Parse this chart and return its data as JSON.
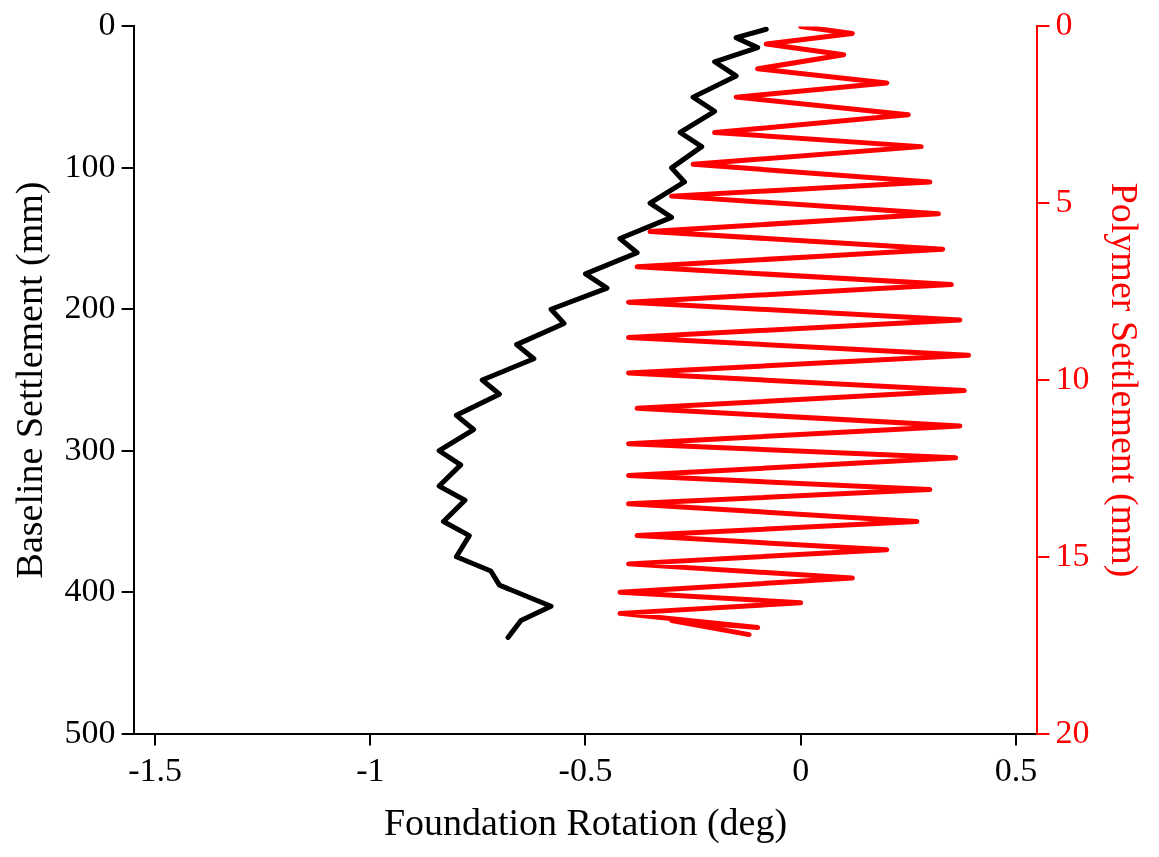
{
  "chart_data": {
    "type": "line",
    "xlabel": "Foundation Rotation (deg)",
    "ylabel": "Baseline Settlement (mm)",
    "y2label": "Polymer Settlement (mm)",
    "xlim": [
      -1.55,
      0.55
    ],
    "xticks": [
      -1.5,
      -1,
      -0.5,
      0,
      0.5
    ],
    "ylim": [
      500,
      0
    ],
    "yticks": [
      0,
      100,
      200,
      300,
      400,
      500
    ],
    "y2lim": [
      20,
      0
    ],
    "y2ticks": [
      0,
      5,
      10,
      15,
      20
    ],
    "grid": false,
    "legend": false,
    "marker": "none",
    "line_style": "solid",
    "series": [
      {
        "color": "#000000",
        "x": [
          -0.08,
          -0.15,
          -0.1,
          -0.2,
          -0.15,
          -0.25,
          -0.2,
          -0.28,
          -0.23,
          -0.3,
          -0.27,
          -0.35,
          -0.3,
          -0.42,
          -0.38,
          -0.5,
          -0.45,
          -0.58,
          -0.55,
          -0.66,
          -0.62,
          -0.74,
          -0.7,
          -0.8,
          -0.76,
          -0.84,
          -0.79,
          -0.84,
          -0.78,
          -0.83,
          -0.77,
          -0.8,
          -0.72,
          -0.7,
          -0.62,
          -0.58,
          -0.65,
          -0.68
        ],
        "values": [
          2,
          8,
          15,
          25,
          35,
          50,
          60,
          75,
          85,
          100,
          110,
          125,
          135,
          150,
          160,
          175,
          185,
          200,
          210,
          225,
          235,
          250,
          260,
          275,
          285,
          300,
          310,
          325,
          335,
          350,
          360,
          375,
          385,
          395,
          405,
          410,
          420,
          432
        ]
      },
      {
        "color": "#ff0000",
        "axis": "y2",
        "x": [
          0.0,
          0.12,
          -0.08,
          0.1,
          -0.1,
          0.2,
          -0.15,
          0.25,
          -0.2,
          0.28,
          -0.25,
          0.3,
          -0.3,
          0.32,
          -0.35,
          0.33,
          -0.38,
          0.35,
          -0.4,
          0.37,
          -0.4,
          0.39,
          -0.4,
          0.38,
          -0.38,
          0.37,
          -0.4,
          0.36,
          -0.4,
          0.3,
          -0.4,
          0.27,
          -0.38,
          0.2,
          -0.4,
          0.12,
          -0.42,
          0.0,
          -0.42,
          -0.1,
          -0.3,
          -0.12
        ],
        "values": [
          0,
          0.2,
          0.5,
          0.8,
          1.2,
          1.6,
          2.0,
          2.5,
          3.0,
          3.4,
          3.9,
          4.4,
          4.8,
          5.3,
          5.8,
          6.3,
          6.8,
          7.3,
          7.8,
          8.3,
          8.8,
          9.3,
          9.8,
          10.3,
          10.8,
          11.3,
          11.8,
          12.2,
          12.7,
          13.1,
          13.5,
          14.0,
          14.4,
          14.8,
          15.2,
          15.6,
          16.0,
          16.3,
          16.6,
          17.0,
          16.8,
          17.2
        ]
      }
    ]
  }
}
